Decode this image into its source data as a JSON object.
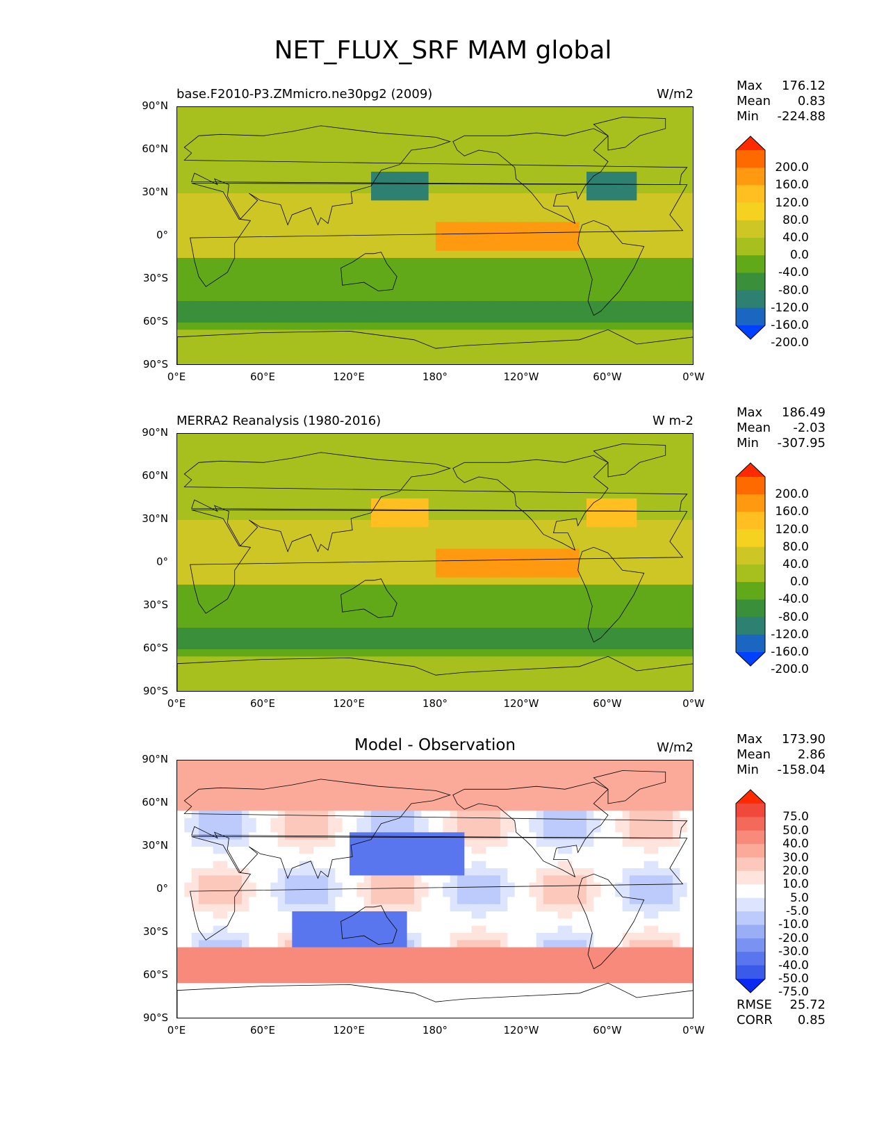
{
  "title": "NET_FLUX_SRF MAM global",
  "lat_ticks": [
    "90°N",
    "60°N",
    "30°N",
    "0°",
    "30°S",
    "60°S",
    "90°S"
  ],
  "lon_ticks": [
    "0°E",
    "60°E",
    "120°E",
    "180°",
    "120°W",
    "60°W",
    "0°W"
  ],
  "chart_data": [
    {
      "type": "heatmap",
      "title": "base.F2010-P3.ZMmicro.ne30pg2 (2009)",
      "units": "W/m2",
      "stats": {
        "max": "176.12",
        "mean": "0.83",
        "min": "-224.88"
      },
      "colorbar": {
        "labels": [
          "200.0",
          "160.0",
          "120.0",
          "80.0",
          "40.0",
          "0.0",
          "-40.0",
          "-80.0",
          "-120.0",
          "-160.0",
          "-200.0"
        ],
        "colors": [
          "#ff2a00",
          "#ff6a00",
          "#ff9a10",
          "#ffbf20",
          "#f4d21f",
          "#cec624",
          "#a7c01d",
          "#62a91a",
          "#3a8f3a",
          "#2e8070",
          "#1a66c0",
          "#0040ff"
        ]
      }
    },
    {
      "type": "heatmap",
      "title": "MERRA2 Reanalysis (1980-2016)",
      "units": "W m-2",
      "stats": {
        "max": "186.49",
        "mean": "-2.03",
        "min": "-307.95"
      },
      "colorbar": {
        "labels": [
          "200.0",
          "160.0",
          "120.0",
          "80.0",
          "40.0",
          "0.0",
          "-40.0",
          "-80.0",
          "-120.0",
          "-160.0",
          "-200.0"
        ],
        "colors": [
          "#ff2a00",
          "#ff6a00",
          "#ff9a10",
          "#ffbf20",
          "#f4d21f",
          "#cec624",
          "#a7c01d",
          "#62a91a",
          "#3a8f3a",
          "#2e8070",
          "#1a66c0",
          "#0040ff"
        ]
      }
    },
    {
      "type": "heatmap",
      "title": "Model - Observation",
      "units": "W/m2",
      "stats": {
        "max": "173.90",
        "mean": "2.86",
        "min": "-158.04"
      },
      "metrics": {
        "rmse": "25.72",
        "corr": "0.85"
      },
      "colorbar": {
        "labels": [
          "75.0",
          "50.0",
          "40.0",
          "30.0",
          "20.0",
          "10.0",
          "5.0",
          "-5.0",
          "-10.0",
          "-20.0",
          "-30.0",
          "-40.0",
          "-50.0",
          "-75.0"
        ],
        "colors": [
          "#ff2a00",
          "#f0483a",
          "#f46a5a",
          "#f78a7a",
          "#fbaa9a",
          "#fdc8bc",
          "#fee4dc",
          "#ffffff",
          "#dde4fd",
          "#bccbfb",
          "#9aaef6",
          "#7a92f2",
          "#5a76ee",
          "#3a5aea",
          "#0a2af0"
        ]
      }
    }
  ],
  "labels": {
    "max": "Max",
    "mean": "Mean",
    "min": "Min",
    "rmse": "RMSE",
    "corr": "CORR"
  }
}
